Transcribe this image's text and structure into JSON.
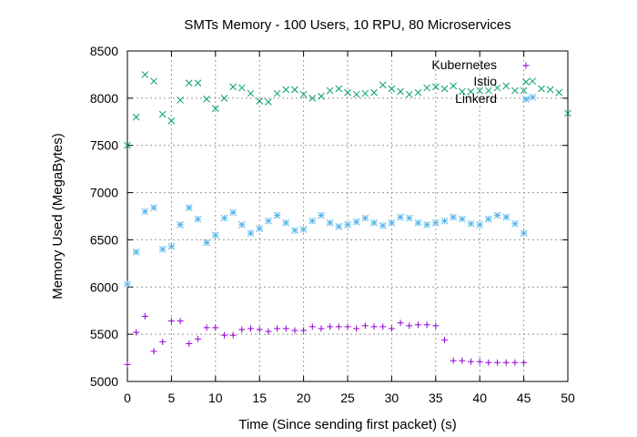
{
  "chart_data": {
    "type": "scatter",
    "title": "SMTs Memory - 100 Users, 10 RPU, 80 Microservices",
    "xlabel": "Time (Since sending first packet) (s)",
    "ylabel": "Memory Used (MegaBytes)",
    "xlim": [
      0,
      50
    ],
    "ylim": [
      5000,
      8500
    ],
    "xticks": [
      "0",
      "5",
      "10",
      "15",
      "20",
      "25",
      "30",
      "35",
      "40",
      "45",
      "50"
    ],
    "yticks": [
      "5000",
      "5500",
      "6000",
      "6500",
      "7000",
      "7500",
      "8000",
      "8500"
    ],
    "grid": true,
    "legend_position": "top-right",
    "series": [
      {
        "name": "Kubernetes",
        "marker": "plus",
        "color": "#9400d3",
        "x": [
          0,
          1,
          2,
          3,
          4,
          5,
          6,
          7,
          8,
          9,
          10,
          11,
          12,
          13,
          14,
          15,
          16,
          17,
          18,
          19,
          20,
          21,
          22,
          23,
          24,
          25,
          26,
          27,
          28,
          29,
          30,
          31,
          32,
          33,
          34,
          35,
          36,
          37,
          38,
          39,
          40,
          41,
          42,
          43,
          44,
          45
        ],
        "y": [
          5180,
          5520,
          5690,
          5320,
          5420,
          5640,
          5640,
          5400,
          5450,
          5570,
          5570,
          5490,
          5490,
          5550,
          5560,
          5550,
          5530,
          5560,
          5560,
          5540,
          5540,
          5580,
          5560,
          5580,
          5580,
          5580,
          5560,
          5590,
          5580,
          5580,
          5560,
          5620,
          5590,
          5600,
          5600,
          5590,
          5440,
          5220,
          5220,
          5210,
          5210,
          5200,
          5200,
          5200,
          5200,
          5200
        ]
      },
      {
        "name": "Istio",
        "marker": "x",
        "color": "#009e73",
        "x": [
          0,
          1,
          2,
          3,
          4,
          5,
          6,
          7,
          8,
          9,
          10,
          11,
          12,
          13,
          14,
          15,
          16,
          17,
          18,
          19,
          20,
          21,
          22,
          23,
          24,
          25,
          26,
          27,
          28,
          29,
          30,
          31,
          32,
          33,
          34,
          35,
          36,
          37,
          38,
          39,
          40,
          41,
          42,
          43,
          44,
          45,
          46,
          47,
          48,
          49,
          50
        ],
        "y": [
          7500,
          7800,
          8250,
          8180,
          7830,
          7760,
          7980,
          8160,
          8160,
          7990,
          7890,
          8000,
          8120,
          8110,
          8050,
          7970,
          7960,
          8050,
          8090,
          8090,
          8040,
          8000,
          8020,
          8080,
          8100,
          8060,
          8040,
          8050,
          8060,
          8140,
          8100,
          8070,
          8040,
          8060,
          8110,
          8120,
          8100,
          8130,
          8070,
          8070,
          8080,
          8080,
          8110,
          8130,
          8080,
          8080,
          8180,
          8100,
          8090,
          8060,
          7840
        ]
      },
      {
        "name": "Linkerd",
        "marker": "star",
        "color": "#56b4e9",
        "x": [
          0,
          1,
          2,
          3,
          4,
          5,
          6,
          7,
          8,
          9,
          10,
          11,
          12,
          13,
          14,
          15,
          16,
          17,
          18,
          19,
          20,
          21,
          22,
          23,
          24,
          25,
          26,
          27,
          28,
          29,
          30,
          31,
          32,
          33,
          34,
          35,
          36,
          37,
          38,
          39,
          40,
          41,
          42,
          43,
          44,
          45,
          46
        ],
        "y": [
          6030,
          6370,
          6800,
          6840,
          6400,
          6430,
          6660,
          6840,
          6720,
          6470,
          6550,
          6730,
          6790,
          6660,
          6570,
          6620,
          6700,
          6760,
          6680,
          6600,
          6610,
          6700,
          6760,
          6680,
          6640,
          6660,
          6690,
          6730,
          6680,
          6650,
          6680,
          6740,
          6730,
          6680,
          6660,
          6680,
          6700,
          6740,
          6720,
          6670,
          6660,
          6720,
          6760,
          6740,
          6670,
          6570,
          8010
        ]
      }
    ]
  }
}
